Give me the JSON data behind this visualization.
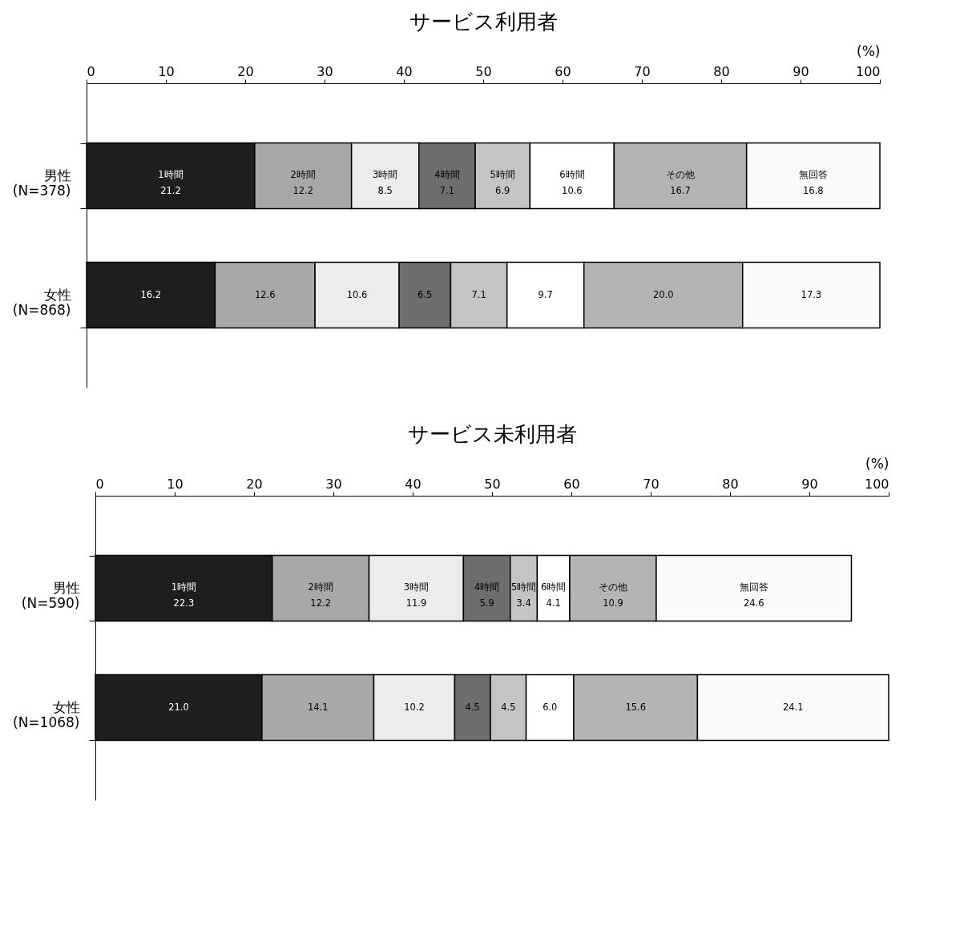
{
  "chart_data": [
    {
      "type": "bar",
      "title": "サービス利用者",
      "xlabel": "(%)",
      "orientation": "horizontal",
      "stacked": true,
      "categories": [
        "男性\n(N=378)",
        "女性\n(N=868)"
      ],
      "xlim": [
        0,
        100
      ],
      "xticks": [
        0,
        10,
        20,
        30,
        40,
        50,
        60,
        70,
        80,
        90,
        100
      ],
      "series": [
        {
          "name": "1時間",
          "color": "#1e1e1e",
          "values": [
            21.2,
            16.2
          ],
          "value_labels": [
            "21.2",
            "16.2"
          ]
        },
        {
          "name": "2時間",
          "color": "#a8a8a8",
          "values": [
            12.2,
            12.6
          ],
          "value_labels": [
            "12.2",
            "12.6"
          ]
        },
        {
          "name": "3時間",
          "color": "#ececec",
          "values": [
            8.5,
            10.6
          ],
          "value_labels": [
            "8.5",
            "10.6"
          ]
        },
        {
          "name": "4時間",
          "color": "#6e6e6e",
          "values": [
            7.1,
            6.5
          ],
          "value_labels": [
            "7.1",
            "6.5"
          ]
        },
        {
          "name": "5時間",
          "color": "#c4c4c4",
          "values": [
            6.9,
            7.1
          ],
          "value_labels": [
            "6.9",
            "7.1"
          ]
        },
        {
          "name": "6時間",
          "color": "#ffffff",
          "values": [
            10.6,
            9.7
          ],
          "value_labels": [
            "10.6",
            "9.7"
          ]
        },
        {
          "name": "その他",
          "color": "#b4b4b4",
          "values": [
            16.7,
            20.0
          ],
          "value_labels": [
            "16.7",
            "20.0"
          ]
        },
        {
          "name": "無回答",
          "color": "#fafafa",
          "values": [
            16.8,
            17.3
          ],
          "value_labels": [
            "16.8",
            "17.3"
          ]
        }
      ]
    },
    {
      "type": "bar",
      "title": "サービス未利用者",
      "xlabel": "(%)",
      "orientation": "horizontal",
      "stacked": true,
      "categories": [
        "男性\n(N=590)",
        "女性\n(N=1068)"
      ],
      "xlim": [
        0,
        100
      ],
      "xticks": [
        0,
        10,
        20,
        30,
        40,
        50,
        60,
        70,
        80,
        90,
        100
      ],
      "series": [
        {
          "name": "1時間",
          "color": "#1e1e1e",
          "values": [
            22.3,
            21.0
          ],
          "value_labels": [
            "22.3",
            "21.0"
          ]
        },
        {
          "name": "2時間",
          "color": "#a8a8a8",
          "values": [
            12.2,
            14.1
          ],
          "value_labels": [
            "12.2",
            "14.1"
          ]
        },
        {
          "name": "3時間",
          "color": "#ececec",
          "values": [
            11.9,
            10.2
          ],
          "value_labels": [
            "11.9",
            "10.2"
          ]
        },
        {
          "name": "4時間",
          "color": "#6e6e6e",
          "values": [
            5.9,
            4.5
          ],
          "value_labels": [
            "5.9",
            "4.5"
          ]
        },
        {
          "name": "5時間",
          "color": "#c4c4c4",
          "values": [
            3.4,
            4.5
          ],
          "value_labels": [
            "3.4",
            "4.5"
          ]
        },
        {
          "name": "6時間",
          "color": "#ffffff",
          "values": [
            4.1,
            6.0
          ],
          "value_labels": [
            "4.1",
            "6.0"
          ]
        },
        {
          "name": "その他",
          "color": "#b4b4b4",
          "values": [
            10.9,
            15.6
          ],
          "value_labels": [
            "10.9",
            "15.6"
          ]
        },
        {
          "name": "無回答",
          "color": "#fafafa",
          "values": [
            24.6,
            24.1
          ],
          "value_labels": [
            "24.6",
            "24.1"
          ]
        }
      ]
    }
  ]
}
